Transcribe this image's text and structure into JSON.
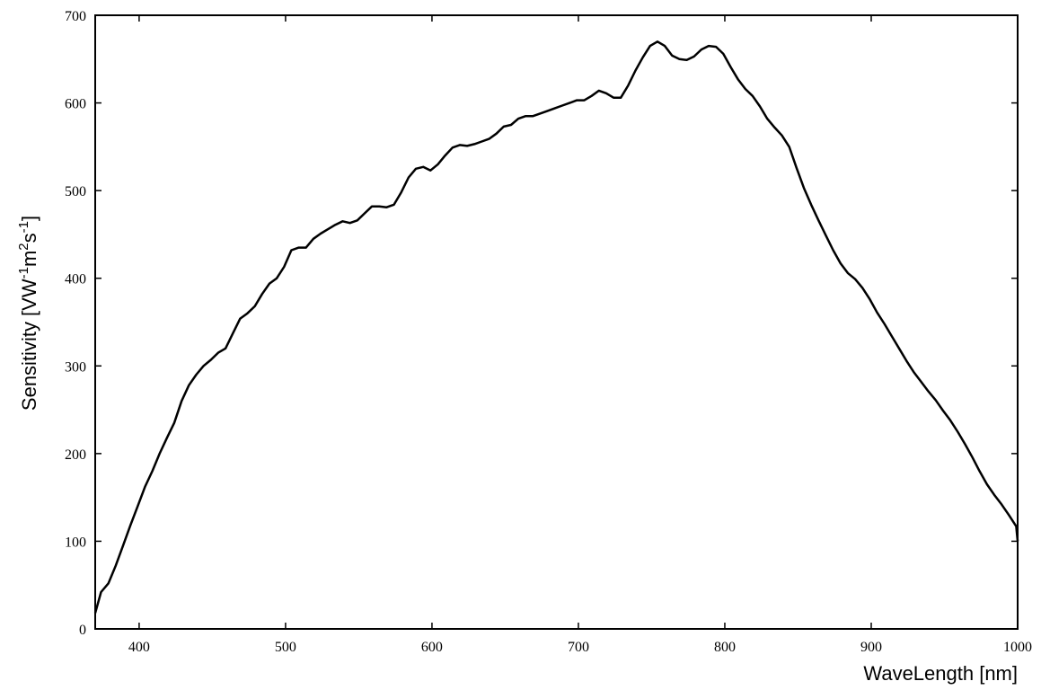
{
  "chart_data": {
    "type": "line",
    "xlabel": "WaveLength [nm]",
    "ylabel": {
      "parts": [
        "Sensitivity [VW",
        "-1",
        "m",
        "2",
        "s",
        "-1",
        "]"
      ]
    },
    "xlim": [
      370,
      1000
    ],
    "ylim": [
      0,
      700
    ],
    "xticks": [
      "400",
      "500",
      "600",
      "700",
      "800",
      "900",
      "1000"
    ],
    "yticks": [
      "0",
      "100",
      "200",
      "300",
      "400",
      "500",
      "600",
      "700"
    ],
    "grid": false,
    "series": [
      {
        "x": [
          370,
          374,
          379,
          384,
          389,
          394,
          399,
          404,
          409,
          414,
          419,
          424,
          429,
          434,
          439,
          444,
          449,
          454,
          459,
          464,
          469,
          474,
          479,
          484,
          489,
          494,
          499,
          504,
          509,
          514,
          519,
          524,
          529,
          534,
          539,
          544,
          549,
          554,
          559,
          564,
          569,
          574,
          579,
          584,
          589,
          594,
          599,
          604,
          609,
          614,
          619,
          624,
          629,
          634,
          639,
          644,
          649,
          654,
          659,
          664,
          669,
          674,
          679,
          684,
          689,
          694,
          699,
          704,
          709,
          714,
          719,
          724,
          729,
          734,
          739,
          744,
          749,
          754,
          759,
          764,
          769,
          774,
          779,
          784,
          789,
          794,
          799,
          804,
          809,
          814,
          819,
          824,
          829,
          834,
          839,
          844,
          849,
          854,
          859,
          864,
          869,
          874,
          879,
          884,
          889,
          894,
          899,
          904,
          909,
          914,
          919,
          924,
          929,
          934,
          939,
          944,
          949,
          954,
          959,
          964,
          969,
          974,
          979,
          984,
          989,
          994,
          999,
          1000
        ],
        "y": [
          18,
          42,
          52,
          72,
          95,
          118,
          140,
          162,
          180,
          200,
          218,
          235,
          260,
          278,
          290,
          300,
          307,
          315,
          320,
          337,
          354,
          360,
          368,
          382,
          394,
          400,
          413,
          432,
          435,
          435,
          445,
          451,
          456,
          461,
          465,
          463,
          466,
          474,
          482,
          482,
          481,
          484,
          498,
          515,
          525,
          527,
          523,
          530,
          540,
          549,
          552,
          551,
          553,
          556,
          559,
          565,
          573,
          575,
          582,
          585,
          585,
          588,
          591,
          594,
          597,
          600,
          603,
          603,
          608,
          614,
          611,
          606,
          606,
          620,
          637,
          652,
          665,
          670,
          665,
          654,
          650,
          649,
          653,
          661,
          665,
          664,
          656,
          641,
          627,
          616,
          608,
          596,
          582,
          572,
          563,
          550,
          526,
          503,
          484,
          466,
          449,
          432,
          417,
          406,
          399,
          389,
          376,
          361,
          348,
          334,
          320,
          306,
          293,
          282,
          271,
          261,
          249,
          238,
          225,
          211,
          196,
          180,
          165,
          153,
          142,
          130,
          117,
          100
        ]
      }
    ]
  }
}
